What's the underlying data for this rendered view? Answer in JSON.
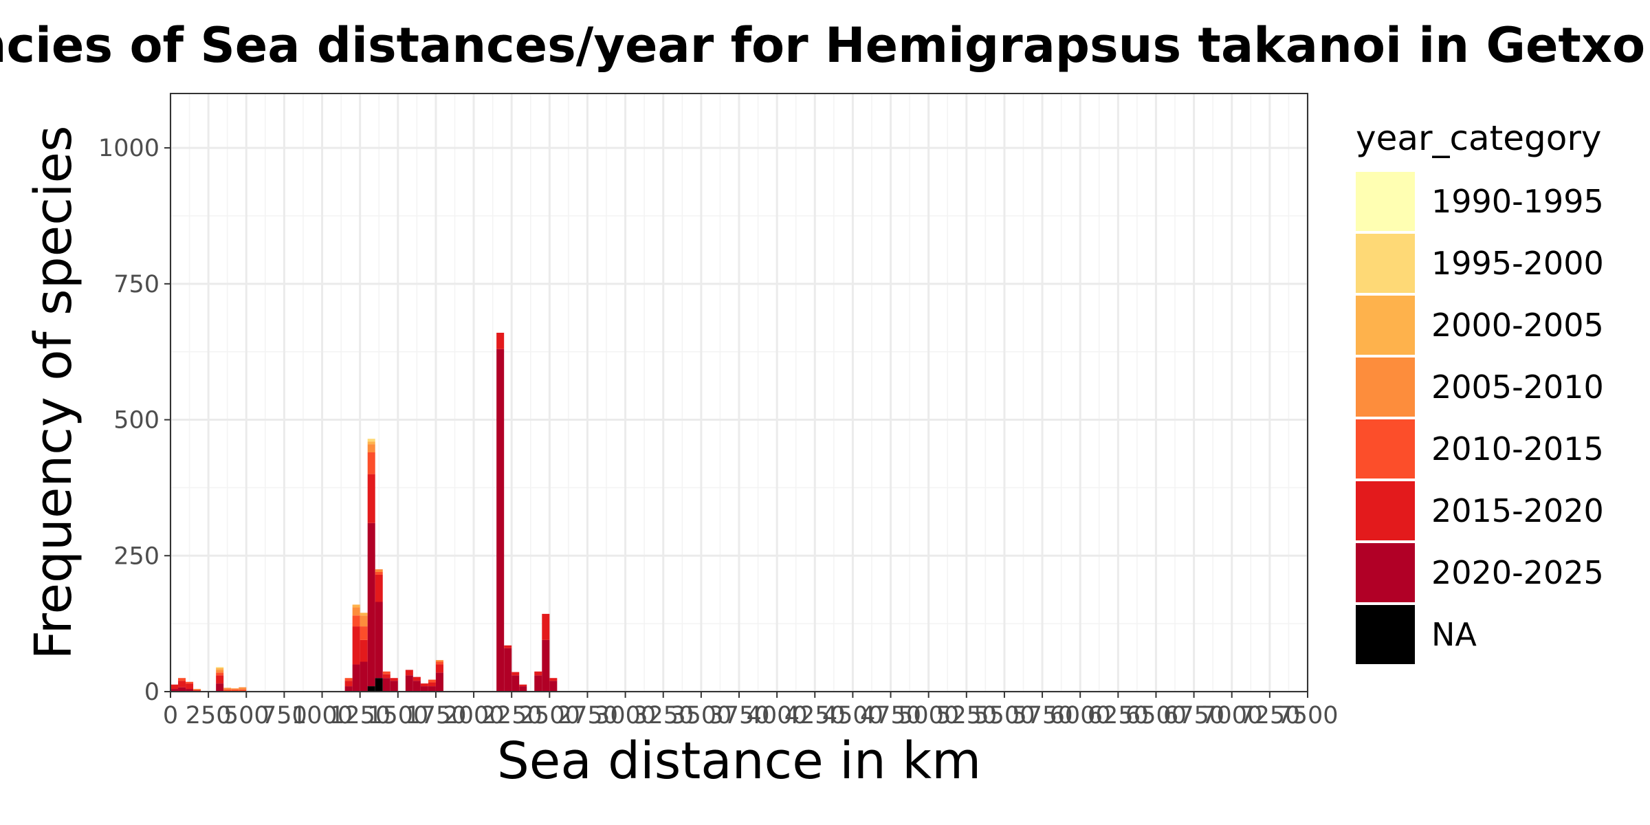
{
  "chart_data": {
    "type": "bar",
    "stacked": true,
    "title": "Frequencies of Sea distances/year for Hemigrapsus takanoi in Getxo",
    "xlabel": "Sea distance in km",
    "ylabel": "Frequency of species",
    "xlim": [
      0,
      7500
    ],
    "ylim": [
      0,
      1100
    ],
    "bin_width": 50,
    "x_ticks": [
      0,
      250,
      500,
      750,
      1000,
      1250,
      1500,
      1750,
      2000,
      2250,
      2500,
      2750,
      3000,
      3250,
      3500,
      3750,
      4000,
      4250,
      4500,
      4750,
      5000,
      5250,
      5500,
      5750,
      6000,
      6250,
      6500,
      6750,
      7000,
      7250,
      7500
    ],
    "y_ticks": [
      0,
      250,
      500,
      750,
      1000
    ],
    "grid": true,
    "legend": {
      "title": "year_category",
      "position": "right",
      "entries": [
        {
          "name": "1990-1995",
          "color": "#FFFFB2"
        },
        {
          "name": "1995-2000",
          "color": "#FED976"
        },
        {
          "name": "2000-2005",
          "color": "#FEB24C"
        },
        {
          "name": "2005-2010",
          "color": "#FD8D3C"
        },
        {
          "name": "2010-2015",
          "color": "#FC4E2A"
        },
        {
          "name": "2015-2020",
          "color": "#E31A1C"
        },
        {
          "name": "2020-2025",
          "color": "#B10026"
        },
        {
          "name": "NA",
          "color": "#000000"
        }
      ]
    },
    "bins": [
      {
        "x": 0,
        "stack": {
          "2020-2025": 5,
          "2015-2020": 8
        }
      },
      {
        "x": 50,
        "stack": {
          "2020-2025": 8,
          "2015-2020": 12,
          "2010-2015": 5
        }
      },
      {
        "x": 100,
        "stack": {
          "2020-2025": 5,
          "2015-2020": 10,
          "2010-2015": 3
        }
      },
      {
        "x": 150,
        "stack": {
          "2015-2020": 3,
          "2005-2010": 2
        }
      },
      {
        "x": 300,
        "stack": {
          "2020-2025": 15,
          "2015-2020": 15,
          "2010-2015": 5,
          "2005-2010": 5,
          "2000-2005": 3,
          "1995-2000": 2
        }
      },
      {
        "x": 350,
        "stack": {
          "2010-2015": 4,
          "2005-2010": 3
        }
      },
      {
        "x": 400,
        "stack": {
          "2010-2015": 4,
          "2005-2010": 2
        }
      },
      {
        "x": 450,
        "stack": {
          "2010-2015": 4,
          "2005-2010": 4
        }
      },
      {
        "x": 1150,
        "stack": {
          "2020-2025": 10,
          "2015-2020": 10,
          "2010-2015": 5
        }
      },
      {
        "x": 1200,
        "stack": {
          "2020-2025": 50,
          "2015-2020": 70,
          "2010-2015": 20,
          "2005-2010": 15,
          "2000-2005": 5
        }
      },
      {
        "x": 1250,
        "stack": {
          "2020-2025": 55,
          "2015-2020": 40,
          "2010-2015": 25,
          "2005-2010": 20,
          "2000-2005": 5
        }
      },
      {
        "x": 1300,
        "stack": {
          "NA": 10,
          "2020-2025": 300,
          "2015-2020": 90,
          "2010-2015": 40,
          "2005-2010": 15,
          "2000-2005": 5,
          "1995-2000": 5
        }
      },
      {
        "x": 1350,
        "stack": {
          "NA": 25,
          "2020-2025": 140,
          "2015-2020": 50,
          "2010-2015": 5,
          "2005-2010": 5
        }
      },
      {
        "x": 1400,
        "stack": {
          "2020-2025": 25,
          "2015-2020": 7,
          "2010-2015": 5
        }
      },
      {
        "x": 1450,
        "stack": {
          "2020-2025": 20,
          "2015-2020": 5
        }
      },
      {
        "x": 1550,
        "stack": {
          "2020-2025": 30,
          "2015-2020": 10
        }
      },
      {
        "x": 1600,
        "stack": {
          "2020-2025": 20,
          "2015-2020": 7
        }
      },
      {
        "x": 1650,
        "stack": {
          "2020-2025": 10,
          "2015-2020": 5
        }
      },
      {
        "x": 1700,
        "stack": {
          "2020-2025": 10,
          "2015-2020": 7,
          "2010-2015": 5
        }
      },
      {
        "x": 1750,
        "stack": {
          "2020-2025": 35,
          "2015-2020": 15,
          "2010-2015": 5,
          "2005-2010": 3
        }
      },
      {
        "x": 2150,
        "stack": {
          "2020-2025": 630,
          "2015-2020": 30
        }
      },
      {
        "x": 2200,
        "stack": {
          "2020-2025": 80,
          "2015-2020": 5
        }
      },
      {
        "x": 2250,
        "stack": {
          "2020-2025": 30,
          "2015-2020": 6
        }
      },
      {
        "x": 2300,
        "stack": {
          "2020-2025": 10,
          "2015-2020": 3
        }
      },
      {
        "x": 2400,
        "stack": {
          "2020-2025": 30,
          "2015-2020": 7
        }
      },
      {
        "x": 2450,
        "stack": {
          "2020-2025": 95,
          "2015-2020": 48
        }
      },
      {
        "x": 2500,
        "stack": {
          "2020-2025": 20,
          "2015-2020": 5
        }
      }
    ]
  }
}
